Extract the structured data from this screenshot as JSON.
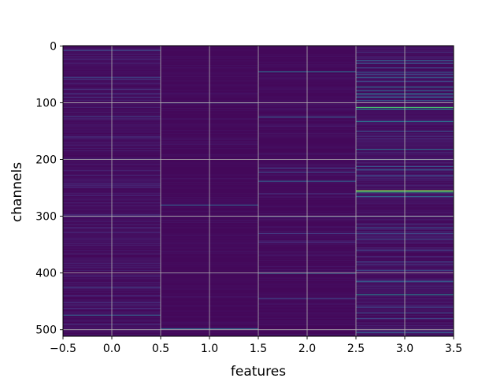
{
  "chart_data": {
    "type": "heatmap",
    "colormap": "viridis",
    "xlabel": "features",
    "ylabel": "channels",
    "columns": [
      0,
      1,
      2,
      3
    ],
    "rows": 512,
    "xlim": [
      -0.5,
      3.5
    ],
    "ylim": [
      511.5,
      -0.5
    ],
    "x_ticks": [
      -0.5,
      0.0,
      0.5,
      1.0,
      1.5,
      2.0,
      2.5,
      3.0,
      3.5
    ],
    "x_tick_labels": [
      "−0.5",
      "0.0",
      "0.5",
      "1.0",
      "1.5",
      "2.0",
      "2.5",
      "3.0",
      "3.5"
    ],
    "y_ticks": [
      0,
      100,
      200,
      300,
      400,
      500
    ],
    "y_tick_labels": [
      "0",
      "100",
      "200",
      "300",
      "400",
      "500"
    ],
    "grid": true,
    "background_level": 0.02,
    "column_noise_level": [
      0.04,
      0.015,
      0.02,
      0.05
    ],
    "highlights": [
      {
        "column": 0,
        "channels": [
          [
            8,
            0.22
          ],
          [
            55,
            0.2
          ],
          [
            58,
            0.18
          ],
          [
            76,
            0.14
          ],
          [
            84,
            0.16
          ],
          [
            90,
            0.14
          ],
          [
            124,
            0.18
          ],
          [
            160,
            0.14
          ],
          [
            245,
            0.12
          ],
          [
            300,
            0.14
          ],
          [
            320,
            0.12
          ],
          [
            405,
            0.12
          ],
          [
            425,
            0.18
          ],
          [
            440,
            0.12
          ],
          [
            452,
            0.14
          ],
          [
            462,
            0.12
          ],
          [
            474,
            0.3
          ],
          [
            490,
            0.14
          ]
        ]
      },
      {
        "column": 1,
        "channels": [
          [
            100,
            0.2
          ],
          [
            280,
            0.3
          ],
          [
            498,
            0.35
          ]
        ]
      },
      {
        "column": 2,
        "channels": [
          [
            45,
            0.35
          ],
          [
            125,
            0.28
          ],
          [
            215,
            0.18
          ],
          [
            222,
            0.22
          ],
          [
            238,
            0.3
          ],
          [
            260,
            0.14
          ],
          [
            300,
            0.2
          ],
          [
            330,
            0.16
          ],
          [
            345,
            0.14
          ],
          [
            400,
            0.38
          ],
          [
            445,
            0.2
          ]
        ]
      },
      {
        "column": 3,
        "channels": [
          [
            25,
            0.3
          ],
          [
            30,
            0.25
          ],
          [
            38,
            0.22
          ],
          [
            46,
            0.28
          ],
          [
            50,
            0.2
          ],
          [
            55,
            0.3
          ],
          [
            62,
            0.22
          ],
          [
            72,
            0.35
          ],
          [
            78,
            0.3
          ],
          [
            84,
            0.4
          ],
          [
            90,
            0.3
          ],
          [
            96,
            0.28
          ],
          [
            108,
            0.7
          ],
          [
            111,
            0.45
          ],
          [
            133,
            0.4
          ],
          [
            150,
            0.25
          ],
          [
            182,
            0.35
          ],
          [
            200,
            0.22
          ],
          [
            212,
            0.25
          ],
          [
            218,
            0.28
          ],
          [
            228,
            0.22
          ],
          [
            255,
            0.85
          ],
          [
            257,
            0.6
          ],
          [
            265,
            0.3
          ],
          [
            300,
            0.22
          ],
          [
            320,
            0.25
          ],
          [
            330,
            0.2
          ],
          [
            340,
            0.22
          ],
          [
            360,
            0.2
          ],
          [
            380,
            0.2
          ],
          [
            395,
            0.22
          ],
          [
            415,
            0.3
          ],
          [
            438,
            0.45
          ],
          [
            460,
            0.2
          ],
          [
            470,
            0.25
          ],
          [
            480,
            0.2
          ],
          [
            505,
            0.3
          ]
        ]
      }
    ]
  }
}
